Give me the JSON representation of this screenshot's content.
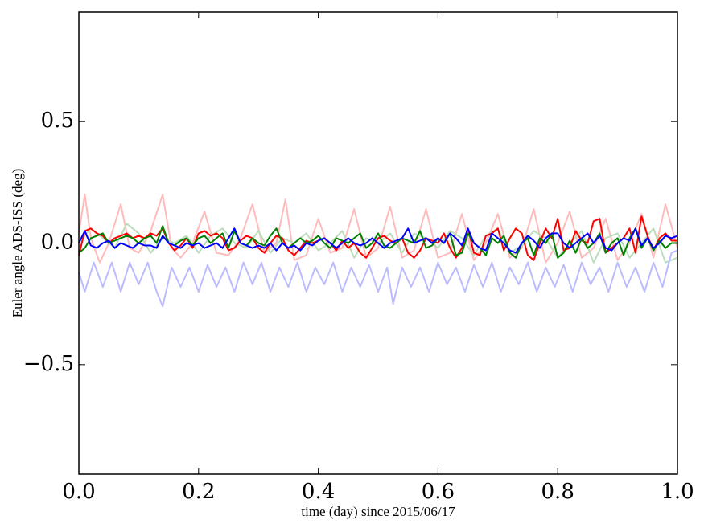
{
  "chart_data": {
    "type": "line",
    "title": "",
    "xlabel": "time (day) since 2015/06/17",
    "ylabel": "Euler angle ADS-ISS (deg)",
    "xlim": [
      0.0,
      1.0
    ],
    "ylim": [
      -0.95,
      0.95
    ],
    "xticks": [
      0.0,
      0.2,
      0.4,
      0.6,
      0.8,
      1.0
    ],
    "xtick_labels": [
      "0.0",
      "0.2",
      "0.4",
      "0.6",
      "0.8",
      "1.0"
    ],
    "yticks": [
      -0.5,
      0.0,
      0.5
    ],
    "ytick_labels": [
      "−0.5",
      "0.0",
      "0.5"
    ],
    "grid": false,
    "legend": "none",
    "series": [
      {
        "color": "#ffbbbb",
        "x": [
          0.0,
          0.01,
          0.02,
          0.035,
          0.05,
          0.07,
          0.085,
          0.1,
          0.12,
          0.14,
          0.155,
          0.17,
          0.19,
          0.21,
          0.23,
          0.25,
          0.27,
          0.29,
          0.31,
          0.33,
          0.345,
          0.36,
          0.38,
          0.4,
          0.42,
          0.44,
          0.46,
          0.48,
          0.5,
          0.52,
          0.54,
          0.56,
          0.58,
          0.6,
          0.62,
          0.64,
          0.66,
          0.68,
          0.7,
          0.72,
          0.74,
          0.76,
          0.78,
          0.8,
          0.82,
          0.84,
          0.86,
          0.88,
          0.9,
          0.92,
          0.94,
          0.96,
          0.98,
          1.0
        ],
        "y": [
          0.04,
          0.2,
          0.02,
          -0.08,
          0.0,
          0.16,
          -0.02,
          -0.04,
          0.05,
          0.2,
          -0.02,
          -0.06,
          0.0,
          0.13,
          -0.04,
          -0.05,
          0.02,
          0.16,
          -0.04,
          0.0,
          0.18,
          -0.07,
          -0.05,
          0.1,
          -0.04,
          -0.02,
          0.14,
          -0.06,
          -0.02,
          0.15,
          -0.06,
          -0.03,
          0.14,
          -0.06,
          -0.04,
          0.12,
          -0.07,
          0.0,
          0.12,
          -0.06,
          -0.02,
          0.14,
          -0.08,
          0.0,
          0.13,
          -0.06,
          -0.02,
          0.1,
          -0.07,
          0.0,
          0.12,
          -0.06,
          0.16,
          -0.02
        ]
      },
      {
        "color": "#bbddbb",
        "x": [
          0.0,
          0.02,
          0.04,
          0.06,
          0.08,
          0.1,
          0.12,
          0.14,
          0.16,
          0.18,
          0.2,
          0.22,
          0.24,
          0.26,
          0.28,
          0.3,
          0.32,
          0.34,
          0.36,
          0.38,
          0.4,
          0.42,
          0.44,
          0.46,
          0.48,
          0.5,
          0.52,
          0.54,
          0.56,
          0.58,
          0.6,
          0.62,
          0.64,
          0.66,
          0.68,
          0.7,
          0.72,
          0.74,
          0.76,
          0.78,
          0.8,
          0.82,
          0.84,
          0.86,
          0.88,
          0.9,
          0.92,
          0.94,
          0.96,
          0.98,
          1.0
        ],
        "y": [
          0.0,
          0.06,
          0.02,
          -0.02,
          0.08,
          0.04,
          -0.04,
          0.02,
          0.0,
          0.03,
          -0.04,
          0.03,
          0.06,
          0.0,
          -0.02,
          0.05,
          -0.04,
          0.02,
          0.0,
          0.04,
          -0.03,
          0.0,
          0.05,
          -0.06,
          0.02,
          0.0,
          0.04,
          -0.04,
          0.04,
          0.02,
          -0.02,
          0.05,
          0.02,
          -0.05,
          0.03,
          0.06,
          -0.04,
          -0.01,
          0.05,
          0.02,
          -0.06,
          0.0,
          0.05,
          -0.08,
          0.02,
          0.04,
          -0.06,
          0.0,
          0.06,
          -0.08,
          -0.06
        ]
      },
      {
        "color": "#bbbbff",
        "x": [
          0.0,
          0.01,
          0.025,
          0.04,
          0.055,
          0.07,
          0.085,
          0.1,
          0.115,
          0.13,
          0.14,
          0.155,
          0.17,
          0.185,
          0.2,
          0.215,
          0.23,
          0.245,
          0.26,
          0.275,
          0.29,
          0.305,
          0.32,
          0.335,
          0.35,
          0.365,
          0.38,
          0.395,
          0.41,
          0.425,
          0.44,
          0.455,
          0.47,
          0.485,
          0.5,
          0.515,
          0.525,
          0.54,
          0.555,
          0.57,
          0.585,
          0.6,
          0.615,
          0.63,
          0.645,
          0.66,
          0.675,
          0.69,
          0.705,
          0.72,
          0.735,
          0.75,
          0.765,
          0.78,
          0.795,
          0.81,
          0.825,
          0.84,
          0.855,
          0.87,
          0.885,
          0.9,
          0.915,
          0.93,
          0.945,
          0.96,
          0.975,
          0.99,
          1.0
        ],
        "y": [
          -0.12,
          -0.2,
          -0.08,
          -0.18,
          -0.08,
          -0.2,
          -0.08,
          -0.17,
          -0.08,
          -0.2,
          -0.26,
          -0.1,
          -0.18,
          -0.1,
          -0.2,
          -0.09,
          -0.18,
          -0.1,
          -0.2,
          -0.08,
          -0.17,
          -0.08,
          -0.2,
          -0.1,
          -0.18,
          -0.08,
          -0.2,
          -0.1,
          -0.17,
          -0.08,
          -0.2,
          -0.1,
          -0.18,
          -0.09,
          -0.2,
          -0.1,
          -0.25,
          -0.1,
          -0.18,
          -0.1,
          -0.2,
          -0.08,
          -0.17,
          -0.1,
          -0.2,
          -0.09,
          -0.18,
          -0.08,
          -0.2,
          -0.1,
          -0.17,
          -0.08,
          -0.2,
          -0.1,
          -0.18,
          -0.09,
          -0.2,
          -0.08,
          -0.17,
          -0.1,
          -0.2,
          -0.08,
          -0.18,
          -0.1,
          -0.2,
          -0.08,
          -0.18,
          -0.04,
          -0.03
        ]
      },
      {
        "color": "#ff0000",
        "x": [
          0.0,
          0.01,
          0.02,
          0.03,
          0.04,
          0.05,
          0.06,
          0.07,
          0.08,
          0.09,
          0.1,
          0.11,
          0.12,
          0.13,
          0.14,
          0.15,
          0.16,
          0.17,
          0.18,
          0.19,
          0.2,
          0.21,
          0.22,
          0.23,
          0.24,
          0.25,
          0.26,
          0.27,
          0.28,
          0.29,
          0.3,
          0.31,
          0.32,
          0.33,
          0.34,
          0.35,
          0.36,
          0.37,
          0.38,
          0.39,
          0.4,
          0.41,
          0.42,
          0.43,
          0.44,
          0.45,
          0.46,
          0.47,
          0.48,
          0.49,
          0.5,
          0.51,
          0.52,
          0.53,
          0.54,
          0.55,
          0.56,
          0.57,
          0.58,
          0.59,
          0.6,
          0.61,
          0.62,
          0.63,
          0.64,
          0.65,
          0.66,
          0.67,
          0.68,
          0.69,
          0.7,
          0.71,
          0.72,
          0.73,
          0.74,
          0.75,
          0.76,
          0.77,
          0.78,
          0.79,
          0.8,
          0.81,
          0.82,
          0.83,
          0.84,
          0.85,
          0.86,
          0.87,
          0.88,
          0.89,
          0.9,
          0.91,
          0.92,
          0.93,
          0.94,
          0.95,
          0.96,
          0.97,
          0.98,
          0.99,
          1.0
        ],
        "y": [
          -0.05,
          0.05,
          0.06,
          0.04,
          0.03,
          0.0,
          0.02,
          0.03,
          0.04,
          0.02,
          0.03,
          0.02,
          0.04,
          0.03,
          0.06,
          0.0,
          -0.03,
          -0.01,
          0.02,
          -0.02,
          0.04,
          0.05,
          0.03,
          0.04,
          0.02,
          -0.03,
          -0.02,
          0.01,
          0.03,
          0.02,
          -0.02,
          -0.04,
          0.0,
          0.03,
          0.02,
          -0.03,
          -0.05,
          -0.02,
          0.01,
          0.0,
          0.01,
          0.02,
          0.0,
          -0.03,
          0.01,
          -0.02,
          0.0,
          -0.04,
          -0.06,
          -0.02,
          0.02,
          0.03,
          0.01,
          0.0,
          0.02,
          -0.04,
          -0.06,
          -0.03,
          0.02,
          0.01,
          0.0,
          0.04,
          -0.02,
          -0.06,
          -0.02,
          0.06,
          -0.04,
          -0.05,
          0.03,
          0.04,
          0.06,
          -0.03,
          0.02,
          0.06,
          0.04,
          -0.05,
          -0.07,
          0.0,
          0.06,
          0.02,
          0.1,
          -0.03,
          -0.02,
          0.05,
          0.01,
          0.0,
          0.09,
          0.1,
          -0.04,
          -0.02,
          0.0,
          0.02,
          0.06,
          -0.04,
          0.11,
          0.03,
          -0.03,
          0.02,
          0.04,
          0.01,
          0.01
        ]
      },
      {
        "color": "#008000",
        "x": [
          0.0,
          0.01,
          0.02,
          0.03,
          0.04,
          0.05,
          0.06,
          0.07,
          0.08,
          0.09,
          0.1,
          0.11,
          0.12,
          0.13,
          0.14,
          0.15,
          0.16,
          0.17,
          0.18,
          0.19,
          0.2,
          0.21,
          0.22,
          0.23,
          0.24,
          0.25,
          0.26,
          0.27,
          0.28,
          0.29,
          0.3,
          0.31,
          0.32,
          0.33,
          0.34,
          0.35,
          0.36,
          0.37,
          0.38,
          0.39,
          0.4,
          0.41,
          0.42,
          0.43,
          0.44,
          0.45,
          0.46,
          0.47,
          0.48,
          0.49,
          0.5,
          0.51,
          0.52,
          0.53,
          0.54,
          0.55,
          0.56,
          0.57,
          0.58,
          0.59,
          0.6,
          0.61,
          0.62,
          0.63,
          0.64,
          0.65,
          0.66,
          0.67,
          0.68,
          0.69,
          0.7,
          0.71,
          0.72,
          0.73,
          0.74,
          0.75,
          0.76,
          0.77,
          0.78,
          0.79,
          0.8,
          0.81,
          0.82,
          0.83,
          0.84,
          0.85,
          0.86,
          0.87,
          0.88,
          0.89,
          0.9,
          0.91,
          0.92,
          0.93,
          0.94,
          0.95,
          0.96,
          0.97,
          0.98,
          0.99,
          1.0
        ],
        "y": [
          -0.04,
          -0.02,
          0.02,
          0.03,
          0.04,
          0.0,
          0.01,
          0.02,
          0.03,
          0.02,
          0.0,
          0.02,
          0.03,
          0.0,
          0.07,
          0.0,
          -0.01,
          0.01,
          0.02,
          -0.01,
          0.02,
          0.03,
          0.0,
          0.02,
          0.04,
          -0.02,
          0.05,
          0.0,
          -0.01,
          0.02,
          0.0,
          -0.01,
          0.03,
          0.06,
          0.0,
          -0.02,
          0.0,
          0.02,
          0.0,
          0.01,
          0.03,
          0.0,
          -0.02,
          0.02,
          0.01,
          0.0,
          0.02,
          0.04,
          -0.02,
          0.0,
          0.04,
          -0.01,
          -0.02,
          0.0,
          0.02,
          0.01,
          0.0,
          0.05,
          -0.02,
          -0.01,
          0.02,
          0.0,
          0.04,
          -0.05,
          -0.04,
          0.04,
          0.0,
          -0.02,
          -0.05,
          0.02,
          0.0,
          0.03,
          -0.04,
          -0.06,
          0.0,
          0.02,
          -0.05,
          0.02,
          0.0,
          0.04,
          -0.06,
          -0.04,
          0.01,
          -0.04,
          0.02,
          -0.02,
          0.0,
          0.04,
          -0.04,
          0.0,
          0.02,
          -0.05,
          0.02,
          0.06,
          -0.02,
          0.02,
          -0.03,
          0.01,
          -0.02,
          0.0,
          0.0
        ]
      },
      {
        "color": "#0000ff",
        "x": [
          0.0,
          0.01,
          0.02,
          0.03,
          0.04,
          0.05,
          0.06,
          0.07,
          0.08,
          0.09,
          0.1,
          0.11,
          0.12,
          0.13,
          0.14,
          0.15,
          0.16,
          0.17,
          0.18,
          0.19,
          0.2,
          0.21,
          0.22,
          0.23,
          0.24,
          0.25,
          0.26,
          0.27,
          0.28,
          0.29,
          0.3,
          0.31,
          0.32,
          0.33,
          0.34,
          0.35,
          0.36,
          0.37,
          0.38,
          0.39,
          0.4,
          0.41,
          0.42,
          0.43,
          0.44,
          0.45,
          0.46,
          0.47,
          0.48,
          0.49,
          0.5,
          0.51,
          0.52,
          0.53,
          0.54,
          0.55,
          0.56,
          0.57,
          0.58,
          0.59,
          0.6,
          0.61,
          0.62,
          0.63,
          0.64,
          0.65,
          0.66,
          0.67,
          0.68,
          0.69,
          0.7,
          0.71,
          0.72,
          0.73,
          0.74,
          0.75,
          0.76,
          0.77,
          0.78,
          0.79,
          0.8,
          0.81,
          0.82,
          0.83,
          0.84,
          0.85,
          0.86,
          0.87,
          0.88,
          0.89,
          0.9,
          0.91,
          0.92,
          0.93,
          0.94,
          0.95,
          0.96,
          0.97,
          0.98,
          0.99,
          1.0
        ],
        "y": [
          0.0,
          0.05,
          -0.01,
          -0.02,
          0.0,
          0.01,
          -0.02,
          0.0,
          -0.01,
          -0.02,
          0.0,
          -0.01,
          -0.01,
          -0.02,
          0.03,
          0.0,
          -0.01,
          -0.02,
          0.0,
          -0.01,
          0.0,
          -0.02,
          -0.01,
          0.0,
          -0.02,
          0.02,
          0.06,
          0.0,
          -0.01,
          -0.02,
          -0.01,
          -0.02,
          0.0,
          -0.03,
          0.0,
          -0.02,
          -0.01,
          -0.03,
          0.0,
          -0.01,
          0.01,
          0.02,
          0.0,
          -0.02,
          0.0,
          0.02,
          0.0,
          -0.01,
          0.0,
          0.02,
          0.0,
          -0.02,
          0.0,
          0.01,
          0.02,
          0.06,
          0.0,
          0.01,
          0.02,
          0.0,
          0.02,
          0.0,
          0.04,
          0.02,
          -0.01,
          0.06,
          0.0,
          -0.02,
          -0.03,
          0.04,
          0.02,
          0.0,
          -0.03,
          -0.04,
          0.0,
          0.03,
          0.01,
          -0.02,
          0.02,
          0.04,
          0.04,
          0.0,
          -0.02,
          0.0,
          0.02,
          0.04,
          0.0,
          0.03,
          -0.02,
          -0.03,
          0.0,
          0.02,
          0.01,
          0.06,
          -0.01,
          0.02,
          -0.02,
          0.0,
          0.03,
          0.02,
          0.03
        ]
      }
    ]
  }
}
